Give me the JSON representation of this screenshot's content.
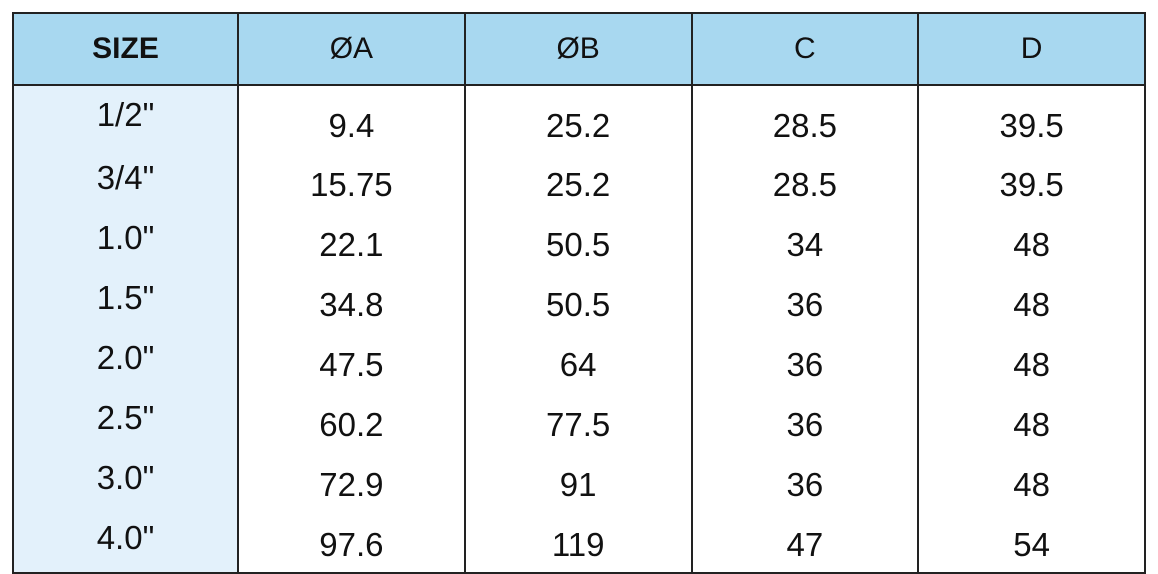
{
  "table": {
    "header": [
      "SIZE",
      "ØA",
      "ØB",
      "C",
      "D"
    ],
    "rows": [
      [
        "1/2\"",
        "9.4",
        "25.2",
        "28.5",
        "39.5"
      ],
      [
        "3/4\"",
        "15.75",
        "25.2",
        "28.5",
        "39.5"
      ],
      [
        "1.0\"",
        "22.1",
        "50.5",
        "34",
        "48"
      ],
      [
        "1.5\"",
        "34.8",
        "50.5",
        "36",
        "48"
      ],
      [
        "2.0\"",
        "47.5",
        "64",
        "36",
        "48"
      ],
      [
        "2.5\"",
        "60.2",
        "77.5",
        "36",
        "48"
      ],
      [
        "3.0\"",
        "72.9",
        "91",
        "36",
        "48"
      ],
      [
        "4.0\"",
        "97.6",
        "119",
        "47",
        "54"
      ]
    ]
  }
}
